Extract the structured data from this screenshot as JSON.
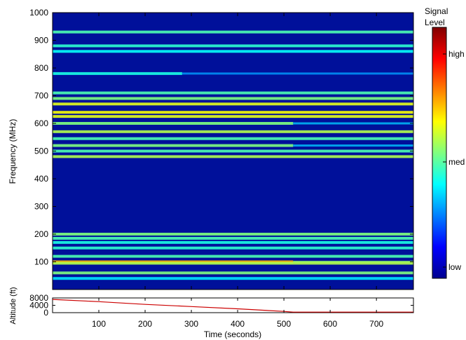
{
  "chart_data": [
    {
      "type": "heatmap",
      "title": "",
      "xlabel": "",
      "ylabel": "Frequency (MHz)",
      "xlim": [
        0,
        780
      ],
      "ylim": [
        0,
        1000
      ],
      "yticks": [
        100,
        200,
        300,
        400,
        500,
        600,
        700,
        800,
        900,
        1000
      ],
      "xticks": [
        100,
        200,
        300,
        400,
        500,
        600,
        700
      ],
      "colorbar": {
        "title_line1": "Signal",
        "title_line2": "Level",
        "labels": [
          "high",
          "med",
          "low"
        ],
        "colormap": "jet"
      },
      "bands": [
        {
          "freq": 930,
          "level": 0.45,
          "end_time": 780
        },
        {
          "freq": 880,
          "level": 0.42,
          "end_time": 780
        },
        {
          "freq": 860,
          "level": 0.38,
          "end_time": 780
        },
        {
          "freq": 780,
          "level": 0.4,
          "end_time": 280
        },
        {
          "freq": 710,
          "level": 0.45,
          "end_time": 780
        },
        {
          "freq": 690,
          "level": 0.5,
          "end_time": 780
        },
        {
          "freq": 670,
          "level": 0.6,
          "end_time": 780
        },
        {
          "freq": 640,
          "level": 0.62,
          "end_time": 780
        },
        {
          "freq": 625,
          "level": 0.6,
          "end_time": 780
        },
        {
          "freq": 600,
          "level": 0.5,
          "end_time": 520
        },
        {
          "freq": 570,
          "level": 0.55,
          "end_time": 780
        },
        {
          "freq": 545,
          "level": 0.45,
          "end_time": 780
        },
        {
          "freq": 520,
          "level": 0.5,
          "end_time": 520
        },
        {
          "freq": 500,
          "level": 0.45,
          "end_time": 780
        },
        {
          "freq": 480,
          "level": 0.55,
          "end_time": 780
        },
        {
          "freq": 200,
          "level": 0.5,
          "end_time": 780
        },
        {
          "freq": 185,
          "level": 0.45,
          "end_time": 780
        },
        {
          "freq": 170,
          "level": 0.4,
          "end_time": 780
        },
        {
          "freq": 150,
          "level": 0.42,
          "end_time": 780
        },
        {
          "freq": 120,
          "level": 0.45,
          "end_time": 780
        },
        {
          "freq": 100,
          "level": 0.7,
          "end_time": 520
        },
        {
          "freq": 95,
          "level": 0.55,
          "end_time": 780
        },
        {
          "freq": 60,
          "level": 0.5,
          "end_time": 780
        },
        {
          "freq": 40,
          "level": 0.35,
          "end_time": 780
        }
      ]
    },
    {
      "type": "line",
      "title": "",
      "xlabel": "Time (seconds)",
      "ylabel": "Altitude (ft)",
      "xlim": [
        0,
        780
      ],
      "ylim": [
        0,
        8000
      ],
      "yticks": [
        0,
        4000,
        8000
      ],
      "xticks": [
        100,
        200,
        300,
        400,
        500,
        600,
        700
      ],
      "x": [
        0,
        100,
        200,
        300,
        400,
        500,
        520,
        600,
        700,
        780
      ],
      "y": [
        7200,
        6000,
        4500,
        3300,
        2100,
        700,
        300,
        300,
        300,
        300
      ],
      "line_color": "#cc0000"
    }
  ]
}
